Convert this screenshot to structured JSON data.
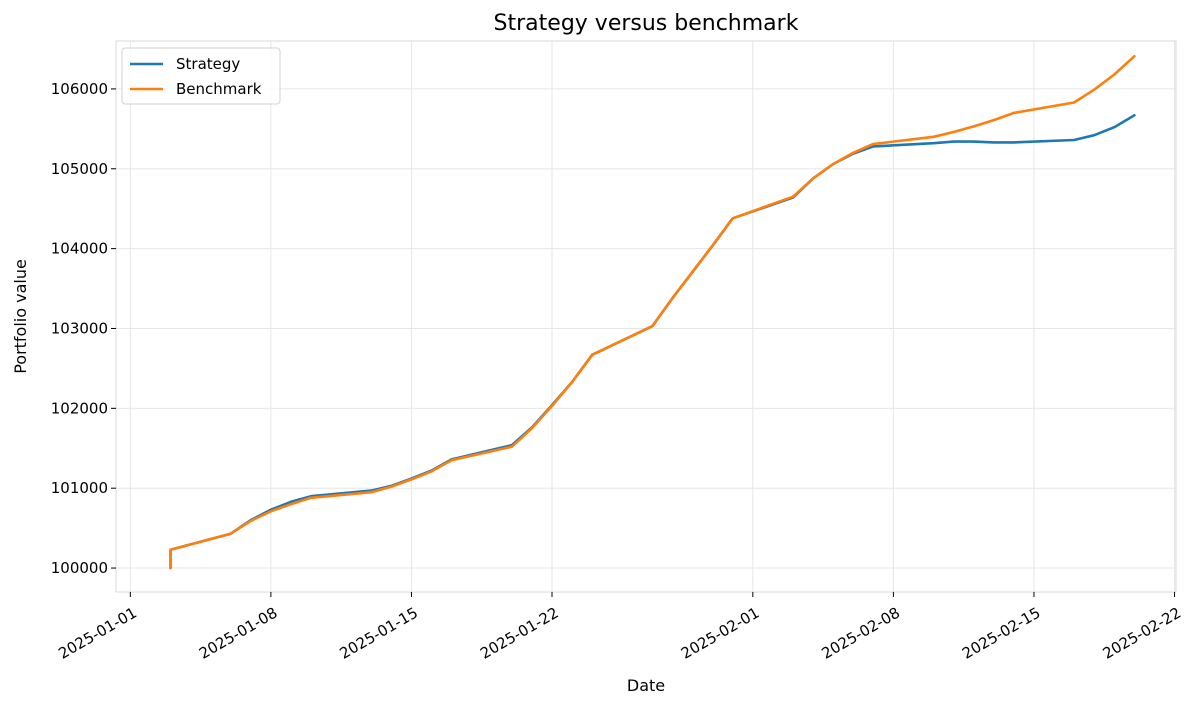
{
  "chart_data": {
    "type": "line",
    "title": "Strategy versus benchmark",
    "xlabel": "Date",
    "ylabel": "Portfolio value",
    "x_axis_type": "date",
    "xlim": [
      "2025-01-01",
      "2025-02-22"
    ],
    "ylim": [
      99700,
      106600
    ],
    "x_ticks": [
      "2025-01-01",
      "2025-01-08",
      "2025-01-15",
      "2025-01-22",
      "2025-02-01",
      "2025-02-08",
      "2025-02-15",
      "2025-02-22"
    ],
    "y_ticks": [
      100000,
      101000,
      102000,
      103000,
      104000,
      105000,
      106000
    ],
    "grid": true,
    "legend_position": "top-left",
    "series": [
      {
        "name": "Strategy",
        "color": "#1f77b4",
        "points": [
          [
            "2025-01-03",
            100000
          ],
          [
            "2025-01-03",
            100230
          ],
          [
            "2025-01-06",
            100430
          ],
          [
            "2025-01-07",
            100600
          ],
          [
            "2025-01-08",
            100730
          ],
          [
            "2025-01-09",
            100830
          ],
          [
            "2025-01-10",
            100900
          ],
          [
            "2025-01-13",
            100970
          ],
          [
            "2025-01-14",
            101030
          ],
          [
            "2025-01-15",
            101120
          ],
          [
            "2025-01-16",
            101220
          ],
          [
            "2025-01-17",
            101360
          ],
          [
            "2025-01-20",
            101540
          ],
          [
            "2025-01-21",
            101760
          ],
          [
            "2025-01-22",
            102040
          ],
          [
            "2025-01-23",
            102330
          ],
          [
            "2025-01-24",
            102670
          ],
          [
            "2025-01-27",
            103030
          ],
          [
            "2025-01-28",
            103380
          ],
          [
            "2025-01-29",
            103710
          ],
          [
            "2025-01-30",
            104040
          ],
          [
            "2025-01-31",
            104380
          ],
          [
            "2025-02-03",
            104640
          ],
          [
            "2025-02-04",
            104880
          ],
          [
            "2025-02-05",
            105060
          ],
          [
            "2025-02-06",
            105190
          ],
          [
            "2025-02-07",
            105280
          ],
          [
            "2025-02-10",
            105320
          ],
          [
            "2025-02-11",
            105340
          ],
          [
            "2025-02-12",
            105340
          ],
          [
            "2025-02-13",
            105330
          ],
          [
            "2025-02-14",
            105330
          ],
          [
            "2025-02-17",
            105360
          ],
          [
            "2025-02-18",
            105420
          ],
          [
            "2025-02-19",
            105520
          ],
          [
            "2025-02-20",
            105670
          ]
        ]
      },
      {
        "name": "Benchmark",
        "color": "#ff7f0e",
        "points": [
          [
            "2025-01-03",
            100000
          ],
          [
            "2025-01-03",
            100230
          ],
          [
            "2025-01-06",
            100430
          ],
          [
            "2025-01-07",
            100590
          ],
          [
            "2025-01-08",
            100710
          ],
          [
            "2025-01-09",
            100800
          ],
          [
            "2025-01-10",
            100880
          ],
          [
            "2025-01-13",
            100950
          ],
          [
            "2025-01-14",
            101020
          ],
          [
            "2025-01-15",
            101110
          ],
          [
            "2025-01-16",
            101210
          ],
          [
            "2025-01-17",
            101350
          ],
          [
            "2025-01-20",
            101520
          ],
          [
            "2025-01-21",
            101750
          ],
          [
            "2025-01-22",
            102030
          ],
          [
            "2025-01-23",
            102330
          ],
          [
            "2025-01-24",
            102670
          ],
          [
            "2025-01-27",
            103030
          ],
          [
            "2025-01-28",
            103380
          ],
          [
            "2025-01-29",
            103710
          ],
          [
            "2025-01-30",
            104040
          ],
          [
            "2025-01-31",
            104380
          ],
          [
            "2025-02-03",
            104650
          ],
          [
            "2025-02-04",
            104880
          ],
          [
            "2025-02-05",
            105060
          ],
          [
            "2025-02-06",
            105200
          ],
          [
            "2025-02-07",
            105310
          ],
          [
            "2025-02-10",
            105400
          ],
          [
            "2025-02-11",
            105460
          ],
          [
            "2025-02-12",
            105530
          ],
          [
            "2025-02-13",
            105610
          ],
          [
            "2025-02-14",
            105700
          ],
          [
            "2025-02-17",
            105830
          ],
          [
            "2025-02-18",
            105990
          ],
          [
            "2025-02-19",
            106180
          ],
          [
            "2025-02-20",
            106410
          ]
        ]
      }
    ]
  }
}
